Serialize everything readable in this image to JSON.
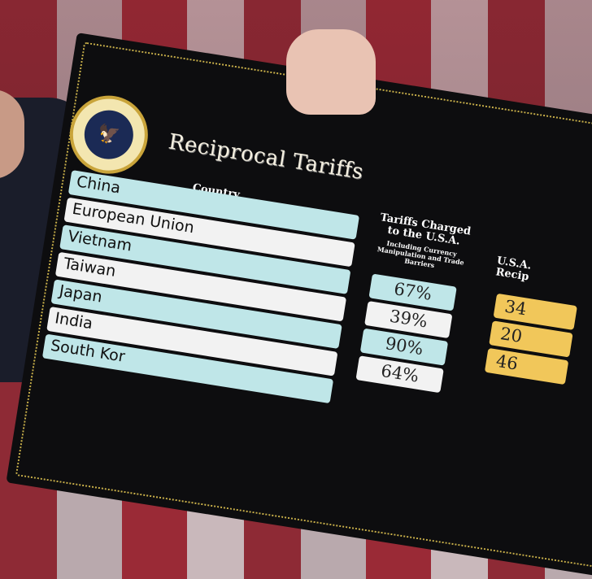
{
  "board": {
    "title": "Reciprocal Tariffs",
    "seal_text": "Seal of the President of the United States",
    "country_header": "Country",
    "charged_header": "Tariffs Charged to the U.S.A.",
    "charged_subheader": "Including Currency Manipulation and Trade Barriers",
    "reciprocal_header": "U.S.A. Recip",
    "rows": [
      {
        "country": "China",
        "charged": "67%",
        "reciprocal": "34"
      },
      {
        "country": "European Union",
        "charged": "39%",
        "reciprocal": "20"
      },
      {
        "country": "Vietnam",
        "charged": "90%",
        "reciprocal": "46"
      },
      {
        "country": "Taiwan",
        "charged": "64%"
      },
      {
        "country": "Japan"
      },
      {
        "country": "India"
      },
      {
        "country": "South Kor"
      }
    ],
    "colors": {
      "teal_row": "#bfe6e8",
      "white_row": "#f2f2f2",
      "yellow": "#f1c75a",
      "board": "#0d0d0f"
    }
  }
}
